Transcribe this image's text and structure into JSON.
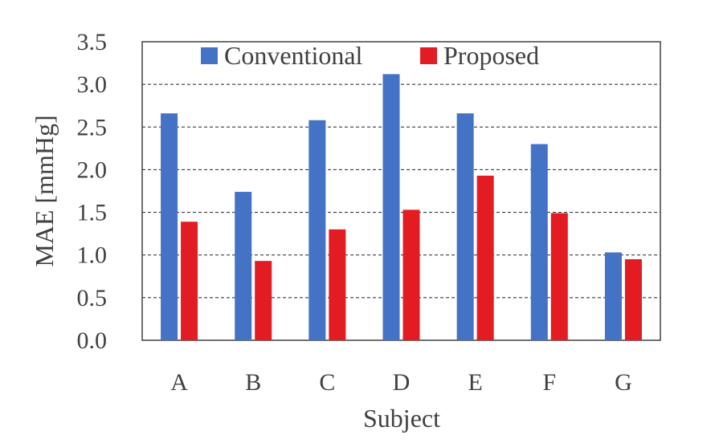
{
  "chart_data": {
    "type": "bar",
    "categories": [
      "A",
      "B",
      "C",
      "D",
      "E",
      "F",
      "G"
    ],
    "series": [
      {
        "name": "Conventional",
        "color": "#4472c4",
        "values": [
          2.66,
          1.74,
          2.58,
          3.12,
          2.66,
          2.3,
          1.03
        ]
      },
      {
        "name": "Proposed",
        "color": "#e31b23",
        "values": [
          1.39,
          0.93,
          1.3,
          1.53,
          1.93,
          1.49,
          0.95
        ]
      }
    ],
    "xlabel": "Subject",
    "ylabel": "MAE [mmHg]",
    "ylim": [
      0,
      3.5
    ],
    "yticks": [
      "0.0",
      "0.5",
      "1.0",
      "1.5",
      "2.0",
      "2.5",
      "3.0",
      "3.5"
    ],
    "grid": "horizontal dashed",
    "legend": "top"
  }
}
